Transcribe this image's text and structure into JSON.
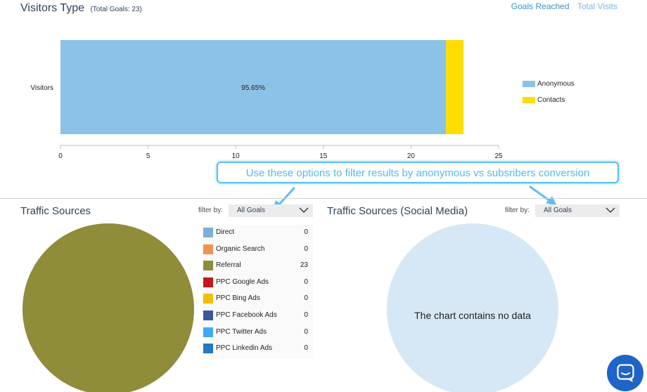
{
  "header": {
    "title": "Visitors Type",
    "subtitle": "(Total Goals: 23)",
    "tabs": [
      {
        "label": "Goals Reached",
        "active": true
      },
      {
        "label": "Total Visits",
        "active": false
      }
    ]
  },
  "chart_data": {
    "type": "bar",
    "orientation": "horizontal",
    "stacked": true,
    "categories": [
      "Visitors"
    ],
    "series": [
      {
        "name": "Anonymous",
        "values": [
          22
        ],
        "color": "#8cc2e6",
        "label": "95.65%"
      },
      {
        "name": "Contacts",
        "values": [
          1
        ],
        "color": "#ffdd00"
      }
    ],
    "xlim": [
      0,
      25
    ],
    "xticks": [
      0,
      5,
      10,
      15,
      20,
      25
    ],
    "legend": "right",
    "grid": false
  },
  "callout": {
    "text": "Use these options to filter results by anonymous vs subsribers conversion"
  },
  "traffic_sources": {
    "title": "Traffic Sources",
    "filter_label": "filter by:",
    "filter_value": "All Goals",
    "pie_color": "#8f8c3a",
    "items": [
      {
        "name": "Direct",
        "value": "0",
        "color": "#7faed8"
      },
      {
        "name": "Organic Search",
        "value": "0",
        "color": "#f2924e"
      },
      {
        "name": "Referral",
        "value": "23",
        "color": "#8f8c3a"
      },
      {
        "name": "PPC Google Ads",
        "value": "0",
        "color": "#c4161c"
      },
      {
        "name": "PPC Bing Ads",
        "value": "0",
        "color": "#f0c000"
      },
      {
        "name": "PPC Facebook Ads",
        "value": "0",
        "color": "#3b5998"
      },
      {
        "name": "PPC Twitter Ads",
        "value": "0",
        "color": "#3fa9f5"
      },
      {
        "name": "PPC Linkedin Ads",
        "value": "0",
        "color": "#1e7bc4"
      }
    ]
  },
  "social_media": {
    "title": "Traffic Sources (Social Media)",
    "filter_label": "filter by:",
    "filter_value": "All Goals",
    "empty_message": "The chart contains no data",
    "pie_color": "#d6e8f5"
  },
  "chat_widget": {
    "icon": "chat-bubble-icon",
    "color": "#1f64c6"
  }
}
